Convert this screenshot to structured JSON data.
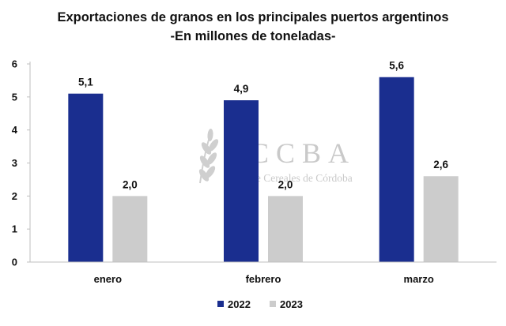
{
  "chart_data": {
    "type": "bar",
    "title": "Exportaciones de granos en los principales puertos argentinos",
    "subtitle": "-En millones de toneladas-",
    "categories": [
      "enero",
      "febrero",
      "marzo"
    ],
    "series": [
      {
        "name": "2022",
        "values": [
          5.1,
          4.9,
          5.6
        ],
        "labels": [
          "5,1",
          "4,9",
          "5,6"
        ],
        "color": "#1a2e8f"
      },
      {
        "name": "2023",
        "values": [
          2.0,
          2.0,
          2.6
        ],
        "labels": [
          "2,0",
          "2,0",
          "2,6"
        ],
        "color": "#cccccc"
      }
    ],
    "y_ticks": [
      0,
      1,
      2,
      3,
      4,
      5,
      6
    ],
    "ylim": [
      0,
      6
    ],
    "xlabel": "",
    "ylabel": "",
    "grid": false,
    "legend_position": "bottom"
  },
  "watermark": {
    "brand": "BCCBA",
    "subtitle": "Bolsa de Cereales de Córdoba",
    "icon": "wheat-icon"
  }
}
